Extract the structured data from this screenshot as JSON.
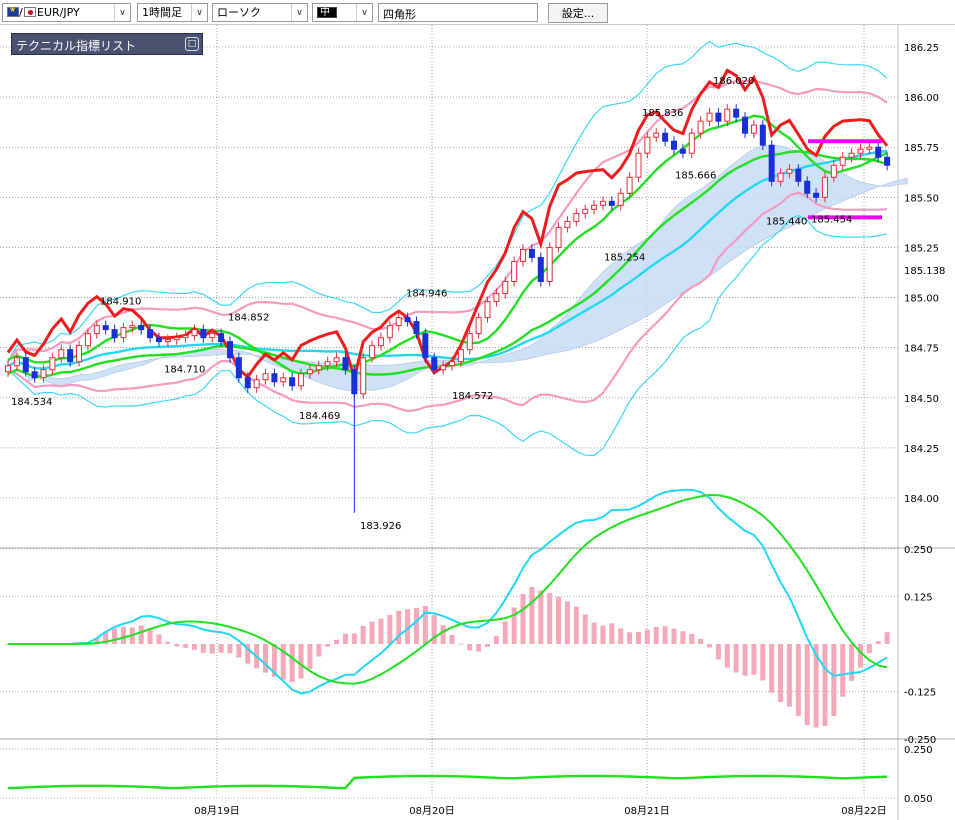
{
  "toolbar": {
    "pair": "EUR/JPY",
    "pair_slash": "/",
    "timeframe": "1時間足",
    "chart_style": "ローソク",
    "line_width": "中",
    "shape": "四角形",
    "settings_label": "設定..."
  },
  "indicator_panel": {
    "title": "テクニカル指標リスト",
    "toggle": "□"
  },
  "colors": {
    "up_candle": "#e0303a",
    "down_candle": "#1a2fd8",
    "bollinger_inner": "#f59ac0",
    "bollinger_outer": "#3cd8f0",
    "ma_fast": "#20e020",
    "ma_slow": "#20d8f0",
    "cloud": "#c6dcf5",
    "rci": "#ee1c1c",
    "macd_hist": "#f5a8b8",
    "horizontal_line": "#f000f0"
  },
  "chart_data": [
    {
      "type": "candlestick",
      "ylim": [
        183.8,
        186.3
      ],
      "y_ticks": [
        "186.25",
        "186.00",
        "185.75",
        "185.50",
        "185.25",
        "185.00",
        "184.75",
        "184.50",
        "184.25",
        "184.00"
      ],
      "extra_tick": "185.138",
      "x_ticks": [
        "08月19日",
        "08月20日",
        "08月21日",
        "08月22日"
      ],
      "annotations": [
        "184.910",
        "184.852",
        "184.710",
        "184.534",
        "184.469",
        "184.946",
        "184.572",
        "183.926",
        "185.254",
        "185.836",
        "185.666",
        "186.020",
        "185.440",
        "185.454"
      ],
      "series": [
        {
          "close": [
            184.66,
            184.7,
            184.63,
            184.6,
            184.64,
            184.7,
            184.74,
            184.68,
            184.76,
            184.82,
            184.86,
            184.84,
            184.8,
            184.85,
            184.86,
            184.84,
            184.8,
            184.78,
            184.79,
            184.8,
            184.81,
            184.84,
            184.8,
            184.82,
            184.78,
            184.7,
            184.6,
            184.55,
            184.59,
            184.62,
            184.58,
            184.6,
            184.56,
            184.62,
            184.64,
            184.66,
            184.68,
            184.7,
            184.64,
            184.52,
            184.7,
            184.76,
            184.8,
            184.86,
            184.9,
            184.88,
            184.82,
            184.7,
            184.64,
            184.66,
            184.68,
            184.74,
            184.82,
            184.9,
            184.98,
            185.02,
            185.08,
            185.18,
            185.24,
            185.2,
            185.08,
            185.25,
            185.35,
            185.38,
            185.42,
            185.44,
            185.46,
            185.48,
            185.46,
            185.52,
            185.6,
            185.72,
            185.8,
            185.82,
            185.78,
            185.74,
            185.72,
            185.82,
            185.88,
            185.92,
            185.88,
            185.94,
            185.9,
            185.82,
            185.86,
            185.76,
            185.58,
            185.62,
            185.64,
            185.58,
            185.52,
            185.5,
            185.6,
            185.66,
            185.7,
            185.72,
            185.74,
            185.75,
            185.7,
            185.66
          ]
        }
      ]
    },
    {
      "type": "line",
      "y_ticks": [
        "0.250",
        "0.125",
        "-0.125",
        "-0.250"
      ]
    },
    {
      "type": "line",
      "y_ticks": [
        "0.250",
        "0.050"
      ]
    }
  ]
}
